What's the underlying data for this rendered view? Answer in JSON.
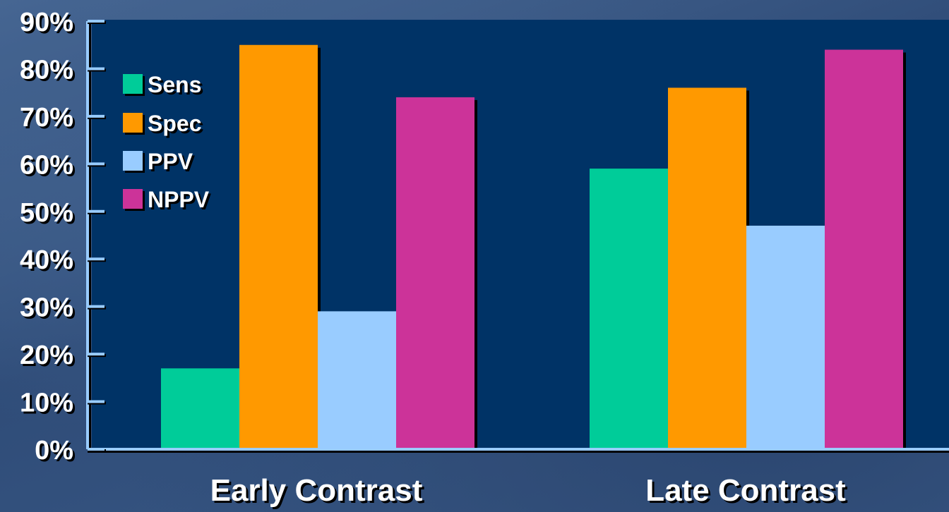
{
  "chart_data": {
    "type": "bar",
    "categories": [
      "Early Contrast",
      "Late Contrast"
    ],
    "series": [
      {
        "name": "Sens",
        "values": [
          17,
          59
        ]
      },
      {
        "name": "Spec",
        "values": [
          85,
          76
        ]
      },
      {
        "name": "PPV",
        "values": [
          29,
          47
        ]
      },
      {
        "name": "NPPV",
        "values": [
          74,
          84
        ]
      }
    ],
    "yticks": [
      "0%",
      "10%",
      "20%",
      "30%",
      "40%",
      "50%",
      "60%",
      "70%",
      "80%",
      "90%"
    ],
    "ylim": [
      0,
      90
    ],
    "grid": false,
    "legend_position": "top-left",
    "colors": {
      "Sens": "#00cc99",
      "Spec": "#ff9900",
      "PPV": "#99ccff",
      "NPPV": "#cc3399",
      "plot_background": "#003366",
      "axis": "#99ccff",
      "text": "#ffffff"
    }
  }
}
